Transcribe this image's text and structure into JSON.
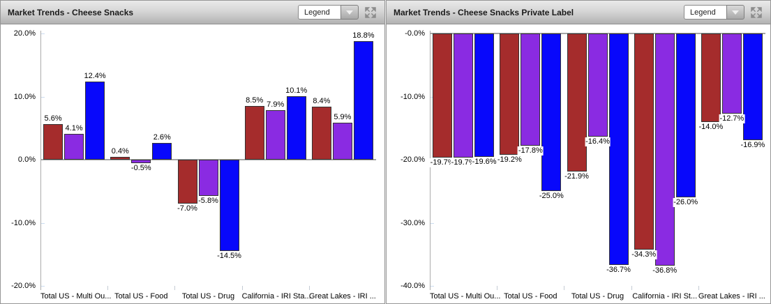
{
  "panels": [
    {
      "title": "Market Trends - Cheese Snacks",
      "legend_button": "Legend"
    },
    {
      "title": "Market Trends - Cheese Snacks Private Label",
      "legend_button": "Legend"
    }
  ],
  "chart_data": [
    {
      "type": "bar",
      "title": "Market Trends - Cheese Snacks",
      "categories": [
        "Total US - Multi Ou...",
        "Total US - Food",
        "Total US - Drug",
        "California - IRI Sta...",
        "Great Lakes - IRI ..."
      ],
      "series": [
        {
          "name": "red",
          "color": "#A52C2C",
          "values": [
            5.6,
            0.4,
            -7.0,
            8.5,
            8.4
          ]
        },
        {
          "name": "purple",
          "color": "#8A2BE2",
          "values": [
            4.1,
            -0.5,
            -5.8,
            7.9,
            5.9
          ]
        },
        {
          "name": "blue",
          "color": "#0808FB",
          "values": [
            12.4,
            2.6,
            -14.5,
            10.1,
            18.8
          ]
        }
      ],
      "ylim": [
        -20,
        20
      ],
      "ytick_labels": [
        "20.0%",
        "10.0%",
        "0.0%",
        "-10.0%",
        "-20.0%"
      ],
      "data_label_format": "0.0%",
      "legend_position": "dropdown-collapsed",
      "grid": false
    },
    {
      "type": "bar",
      "title": "Market Trends - Cheese Snacks Private Label",
      "categories": [
        "Total US - Multi Ou...",
        "Total US - Food",
        "Total US - Drug",
        "California - IRI St...",
        "Great Lakes - IRI ..."
      ],
      "series": [
        {
          "name": "red",
          "color": "#A52C2C",
          "values": [
            -19.7,
            -19.2,
            -21.9,
            -34.3,
            -14.0
          ]
        },
        {
          "name": "purple",
          "color": "#8A2BE2",
          "values": [
            -19.7,
            -17.8,
            -16.4,
            -36.8,
            -12.7
          ]
        },
        {
          "name": "blue",
          "color": "#0808FB",
          "values": [
            -19.6,
            -25.0,
            -36.7,
            -26.0,
            -16.9
          ]
        }
      ],
      "ylim": [
        -40,
        0
      ],
      "ytick_labels": [
        "-0.0%",
        "-10.0%",
        "-20.0%",
        "-30.0%",
        "-40.0%"
      ],
      "data_label_format": "0.0%",
      "legend_position": "dropdown-collapsed",
      "grid": false
    }
  ],
  "colors": {
    "bar_border": "#333333",
    "axis_line": "#ABABAB",
    "zero_baseline": "#A6A6A6",
    "header_text": "#1A1A1A"
  }
}
